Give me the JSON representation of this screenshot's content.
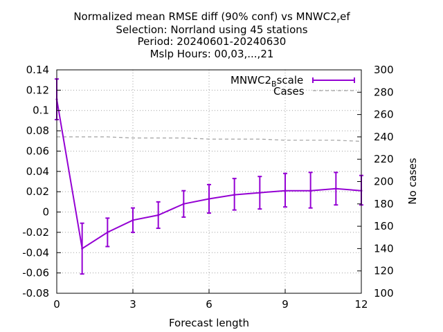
{
  "chart_data": {
    "type": "line",
    "title_lines": [
      "Normalized mean RMSE diff (90% conf) vs MNWC2",
      "Selection: Norrland using    45 stations",
      "Period: 20240601-20240630",
      "Mslp   Hours: 00,03,...,21"
    ],
    "title_suffix_sub": "r",
    "title_suffix_tail": "ef",
    "xlabel": "Forecast length",
    "ylabel": "",
    "y2label": "No cases",
    "xlim": [
      0,
      12
    ],
    "ylim": [
      -0.08,
      0.14
    ],
    "y2lim": [
      100,
      300
    ],
    "x_ticks": [
      0,
      3,
      6,
      9,
      12
    ],
    "y_ticks": [
      -0.08,
      -0.06,
      -0.04,
      -0.02,
      0,
      0.02,
      0.04,
      0.06,
      0.08,
      0.1,
      0.12,
      0.14
    ],
    "y_tick_labels": [
      "-0.08",
      "-0.06",
      "-0.04",
      "-0.02",
      "0",
      "0.02",
      "0.04",
      "0.06",
      "0.08",
      "0.1",
      "0.12",
      "0.14"
    ],
    "y2_ticks": [
      100,
      120,
      140,
      160,
      180,
      200,
      220,
      240,
      260,
      280,
      300
    ],
    "grid": true,
    "legend_position": "top-right",
    "series": [
      {
        "name": "MNWC2",
        "name_sub": "B",
        "name_tail": "scale",
        "color": "#9400d3",
        "axis": "y",
        "x": [
          0,
          1,
          2,
          3,
          4,
          5,
          6,
          7,
          8,
          9,
          10,
          11,
          12
        ],
        "values": [
          0.111,
          -0.036,
          -0.02,
          -0.008,
          -0.003,
          0.008,
          0.013,
          0.017,
          0.019,
          0.021,
          0.021,
          0.023,
          0.021
        ],
        "err_low": [
          0.091,
          -0.061,
          -0.034,
          -0.02,
          -0.016,
          -0.005,
          -0.001,
          0.002,
          0.003,
          0.005,
          0.004,
          0.007,
          0.007
        ],
        "err_high": [
          0.131,
          -0.011,
          -0.006,
          0.004,
          0.01,
          0.021,
          0.027,
          0.033,
          0.035,
          0.038,
          0.039,
          0.039,
          0.036
        ]
      },
      {
        "name": "Cases",
        "color": "#a0a0a0",
        "axis": "y2",
        "x": [
          0,
          1,
          2,
          3,
          4,
          5,
          6,
          7,
          8,
          9,
          10,
          11,
          12
        ],
        "values": [
          240,
          240,
          240,
          239,
          239,
          239,
          238,
          238,
          238,
          237,
          237,
          237,
          236
        ]
      }
    ]
  }
}
